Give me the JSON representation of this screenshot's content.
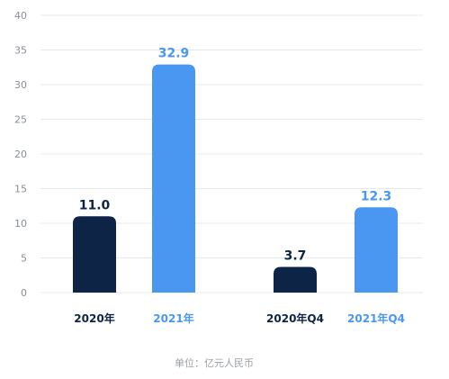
{
  "chart_data": {
    "type": "bar",
    "categories": [
      "2020年",
      "2021年",
      "2020年Q4",
      "2021年Q4"
    ],
    "values": [
      11.0,
      32.9,
      3.7,
      12.3
    ],
    "value_labels": [
      "11.0",
      "32.9",
      "3.7",
      "12.3"
    ],
    "bar_colors": [
      "#0d2447",
      "#4a97f2",
      "#0d2447",
      "#4a97f2"
    ],
    "category_label_colors": [
      "#0d2447",
      "#4a97f2",
      "#0d2447",
      "#4a97f2"
    ],
    "ylim": [
      0,
      40
    ],
    "yticks": [
      0,
      5,
      10,
      15,
      20,
      25,
      30,
      35,
      40
    ],
    "grid": true,
    "unit_note": "单位：亿元人民币",
    "title": "",
    "xlabel": "",
    "ylabel": ""
  }
}
